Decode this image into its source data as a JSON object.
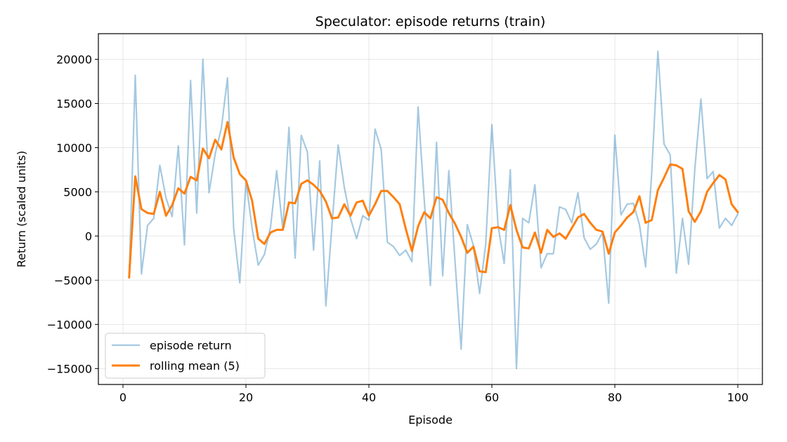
{
  "chart_data": {
    "type": "line",
    "title": "Speculator: episode returns (train)",
    "xlabel": "Episode",
    "ylabel": "Return (scaled units)",
    "xlim": [
      -4,
      104
    ],
    "ylim": [
      -16800,
      22900
    ],
    "xticks": [
      0,
      20,
      40,
      60,
      80,
      100
    ],
    "xtick_labels": [
      "0",
      "20",
      "40",
      "60",
      "80",
      "100"
    ],
    "yticks": [
      -15000,
      -10000,
      -5000,
      0,
      5000,
      10000,
      15000,
      20000
    ],
    "ytick_labels": [
      "−15000",
      "−10000",
      "−5000",
      "0",
      "5000",
      "10000",
      "15000",
      "20000"
    ],
    "grid": true,
    "legend_position": "lower-left",
    "x": [
      1,
      2,
      3,
      4,
      5,
      6,
      7,
      8,
      9,
      10,
      11,
      12,
      13,
      14,
      15,
      16,
      17,
      18,
      19,
      20,
      21,
      22,
      23,
      24,
      25,
      26,
      27,
      28,
      29,
      30,
      31,
      32,
      33,
      34,
      35,
      36,
      37,
      38,
      39,
      40,
      41,
      42,
      43,
      44,
      45,
      46,
      47,
      48,
      49,
      50,
      51,
      52,
      53,
      54,
      55,
      56,
      57,
      58,
      59,
      60,
      61,
      62,
      63,
      64,
      65,
      66,
      67,
      68,
      69,
      70,
      71,
      72,
      73,
      74,
      75,
      76,
      77,
      78,
      79,
      80,
      81,
      82,
      83,
      84,
      85,
      86,
      87,
      88,
      89,
      90,
      91,
      92,
      93,
      94,
      95,
      96,
      97,
      98,
      99,
      100
    ],
    "series": [
      {
        "name": "episode return",
        "color": "#1f77b4",
        "opacity": 0.4,
        "values": [
          -4700,
          18200,
          -4300,
          1200,
          2000,
          8000,
          4300,
          2200,
          10200,
          -1000,
          17600,
          2600,
          20000,
          4900,
          9300,
          12200,
          17900,
          900,
          -5300,
          6200,
          900,
          -3300,
          -2100,
          1000,
          7400,
          700,
          12300,
          -2500,
          11400,
          9500,
          -1600,
          8500,
          -7900,
          1300,
          10300,
          5500,
          2000,
          -300,
          2300,
          1800,
          12100,
          9800,
          -700,
          -1200,
          -2200,
          -1600,
          -2900,
          14600,
          4100,
          -5600,
          10600,
          -4500,
          7400,
          -2800,
          -12800,
          1300,
          -1100,
          -6500,
          -900,
          12600,
          1200,
          -3100,
          7500,
          -15000,
          2000,
          1500,
          5800,
          -3600,
          -2000,
          -2000,
          3300,
          3000,
          1500,
          4900,
          -200,
          -1500,
          -900,
          400,
          -7600,
          11400,
          2400,
          3600,
          3700,
          1300,
          -3500,
          7200,
          20900,
          10400,
          9200,
          -4200,
          2000,
          -3200,
          7500,
          15500,
          6500,
          7300,
          900,
          2000,
          1200,
          2500
        ]
      },
      {
        "name": "rolling mean (5)",
        "color": "#ff7f0e",
        "opacity": 1,
        "values": [
          -4700,
          6750,
          3050,
          2600,
          2500,
          5000,
          2300,
          3500,
          5400,
          4800,
          6700,
          6300,
          9900,
          8800,
          10900,
          9800,
          12900,
          8900,
          7000,
          6300,
          4000,
          -300,
          -900,
          400,
          700,
          700,
          3800,
          3700,
          5900,
          6300,
          5800,
          5100,
          3900,
          2000,
          2100,
          3600,
          2300,
          3800,
          4000,
          2300,
          3600,
          5100,
          5100,
          4400,
          3600,
          800,
          -1700,
          1100,
          2700,
          2000,
          4400,
          4100,
          2600,
          1400,
          -100,
          -1900,
          -1200,
          -4000,
          -4100,
          900,
          1000,
          700,
          3500,
          700,
          -1300,
          -1400,
          400,
          -1900,
          700,
          -100,
          300,
          -300,
          900,
          2100,
          2500,
          1500,
          700,
          500,
          -2000,
          400,
          1200,
          2100,
          2700,
          4500,
          1500,
          1800,
          5200,
          6600,
          8100,
          8000,
          7600,
          2800,
          1600,
          2800,
          5000,
          6000,
          6900,
          6400,
          3600,
          2700
        ]
      }
    ]
  }
}
